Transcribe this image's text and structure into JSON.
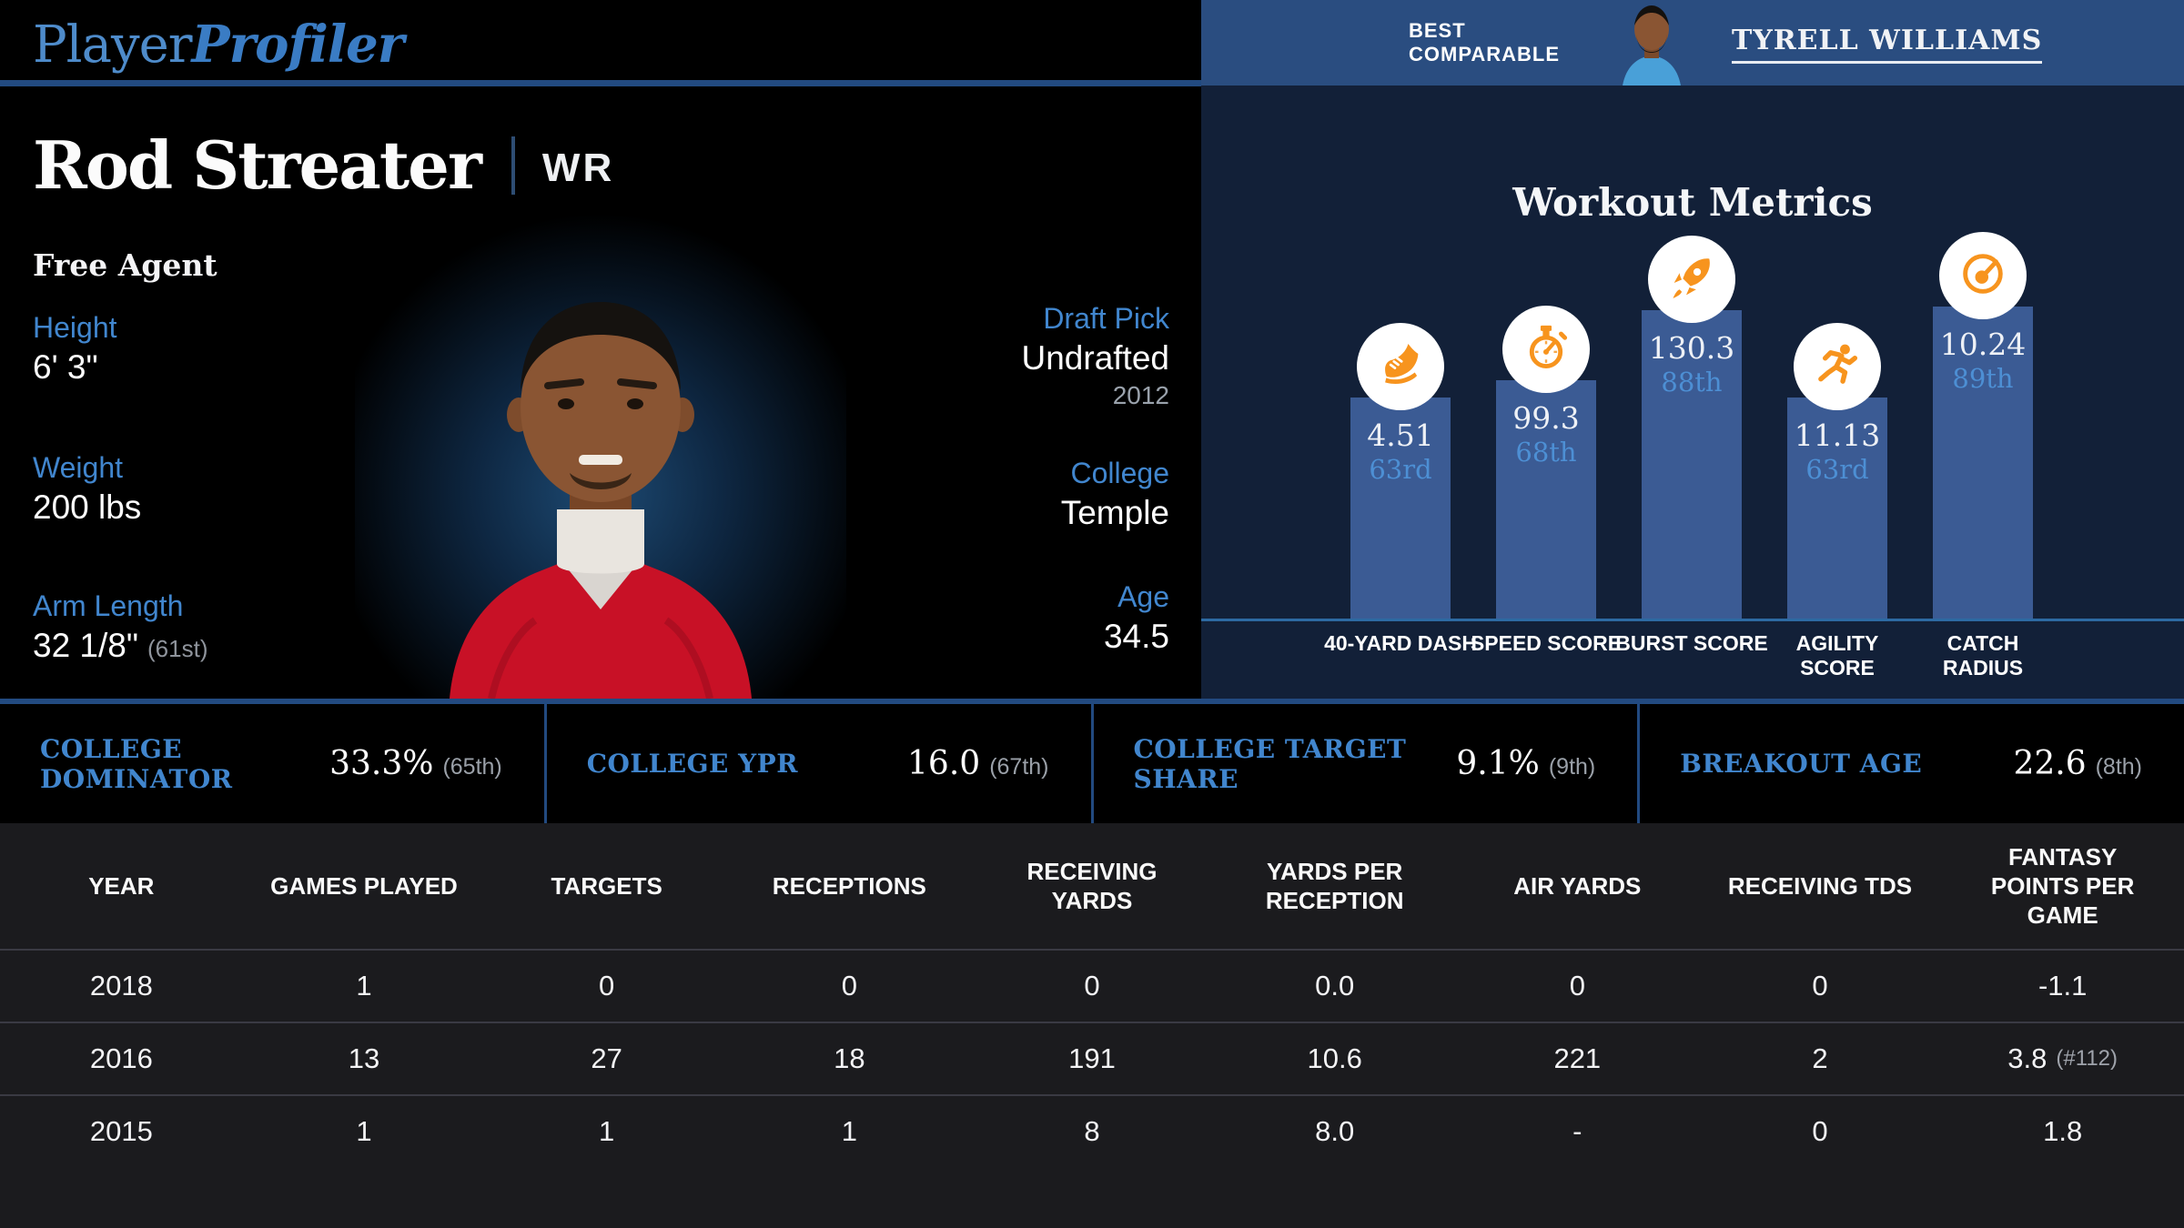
{
  "brand": {
    "name_regular": "Player",
    "name_bold": "Profiler"
  },
  "player": {
    "name": "Rod Streater",
    "position": "WR",
    "status": "Free Agent"
  },
  "bio_left": [
    {
      "label": "Height",
      "value": "6' 3\"",
      "percentile": ""
    },
    {
      "label": "Weight",
      "value": "200 lbs",
      "percentile": ""
    },
    {
      "label": "Arm Length",
      "value": "32 1/8\"",
      "percentile": "(61st)"
    }
  ],
  "bio_right": [
    {
      "label": "Draft Pick",
      "value": "Undrafted",
      "sub": "2012"
    },
    {
      "label": "College",
      "value": "Temple",
      "sub": ""
    },
    {
      "label": "Age",
      "value": "34.5",
      "sub": ""
    }
  ],
  "best_comparable": {
    "heading": "BEST COMPARABLE",
    "player_name": "TYRELL WILLIAMS"
  },
  "workout": {
    "title": "Workout Metrics",
    "chart_data": {
      "type": "bar",
      "categories": [
        "40-YARD DASH",
        "SPEED SCORE",
        "BURST SCORE",
        "AGILITY SCORE",
        "CATCH RADIUS"
      ],
      "values": [
        4.51,
        99.3,
        130.3,
        11.13,
        10.24
      ],
      "value_labels": [
        "4.51",
        "99.3",
        "130.3",
        "11.13",
        "10.24"
      ],
      "percentiles": [
        "63rd",
        "68th",
        "88th",
        "63rd",
        "89th"
      ],
      "percentile_numbers": [
        63,
        68,
        88,
        63,
        89
      ],
      "icons": [
        "shoe-icon",
        "stopwatch-icon",
        "rocket-icon",
        "runner-icon",
        "gauge-icon"
      ],
      "ylabel": "percentile",
      "ylim": [
        0,
        100
      ],
      "grid": false,
      "legend": false
    }
  },
  "college_stats": [
    {
      "label": "COLLEGE DOMINATOR",
      "value": "33.3%",
      "percentile": "(65th)"
    },
    {
      "label": "COLLEGE YPR",
      "value": "16.0",
      "percentile": "(67th)"
    },
    {
      "label": "COLLEGE TARGET SHARE",
      "value": "9.1%",
      "percentile": "(9th)"
    },
    {
      "label": "BREAKOUT AGE",
      "value": "22.6",
      "percentile": "(8th)"
    }
  ],
  "season_table": {
    "columns": [
      "YEAR",
      "GAMES PLAYED",
      "TARGETS",
      "RECEPTIONS",
      "RECEIVING YARDS",
      "YARDS PER RECEPTION",
      "AIR YARDS",
      "RECEIVING TDS",
      "FANTASY POINTS PER GAME"
    ],
    "rows": [
      {
        "cells": [
          "2018",
          "1",
          "0",
          "0",
          "0",
          "0.0",
          "0",
          "0",
          "-1.1"
        ],
        "note": ""
      },
      {
        "cells": [
          "2016",
          "13",
          "27",
          "18",
          "191",
          "10.6",
          "221",
          "2",
          "3.8"
        ],
        "note": "(#112)"
      },
      {
        "cells": [
          "2015",
          "1",
          "1",
          "1",
          "8",
          "8.0",
          "-",
          "0",
          "1.8"
        ],
        "note": ""
      }
    ]
  },
  "colors": {
    "accent_blue": "#4186ce",
    "header_blue": "#2a4d80",
    "panel_navy": "#122038",
    "bar_blue": "#3b5b94",
    "baseline_blue": "#2d6aa3",
    "icon_orange": "#f7941e",
    "percentile_blue": "#4d8fd4",
    "table_bg": "#1b1b1e",
    "muted_gray": "#9aa0a8"
  }
}
